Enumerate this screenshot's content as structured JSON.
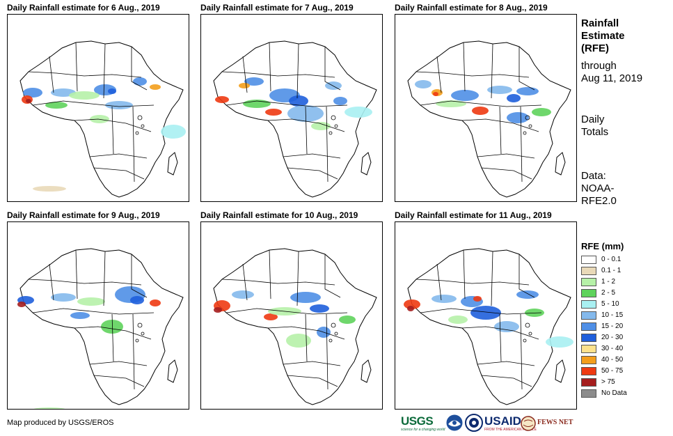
{
  "panels": [
    {
      "title": "Daily Rainfall estimate for 6 Aug., 2019"
    },
    {
      "title": "Daily Rainfall estimate for 7 Aug., 2019"
    },
    {
      "title": "Daily Rainfall estimate for 8 Aug., 2019"
    },
    {
      "title": "Daily Rainfall estimate for 9 Aug., 2019"
    },
    {
      "title": "Daily Rainfall estimate for 10 Aug., 2019"
    },
    {
      "title": "Daily Rainfall estimate for 11 Aug., 2019"
    }
  ],
  "side": {
    "title_lines": [
      "Rainfall",
      "Estimate",
      "(RFE)"
    ],
    "through_lines": [
      "through",
      "Aug 11, 2019"
    ],
    "totals_lines": [
      "Daily",
      "Totals"
    ],
    "data_lines": [
      "Data:",
      "NOAA-",
      "RFE2.0"
    ]
  },
  "legend": {
    "title": "RFE (mm)",
    "items": [
      {
        "label": "0 - 0.1",
        "color": "#ffffff"
      },
      {
        "label": "0.1 - 1",
        "color": "#e9d9b8"
      },
      {
        "label": "1 - 2",
        "color": "#b6f1a8"
      },
      {
        "label": "2 - 5",
        "color": "#5fd35c"
      },
      {
        "label": "5 - 10",
        "color": "#a9f0f2"
      },
      {
        "label": "10 - 15",
        "color": "#84b9ec"
      },
      {
        "label": "15 - 20",
        "color": "#4f8fe6"
      },
      {
        "label": "20 - 30",
        "color": "#1f5fdc"
      },
      {
        "label": "30 - 40",
        "color": "#fde28c"
      },
      {
        "label": "40 - 50",
        "color": "#f39e1c"
      },
      {
        "label": "50 - 75",
        "color": "#ee3a12"
      },
      {
        "label": "> 75",
        "color": "#a51e1e"
      },
      {
        "label": "No Data",
        "color": "#8c8c8c"
      }
    ]
  },
  "credit": "Map produced by USGS/EROS",
  "logos": {
    "usgs": "USGS",
    "usgs_tagline": "science for a changing world",
    "usaid": "USAID",
    "usaid_tagline": "FROM THE AMERICAN PEOPLE",
    "fews": "FEWS NET"
  }
}
